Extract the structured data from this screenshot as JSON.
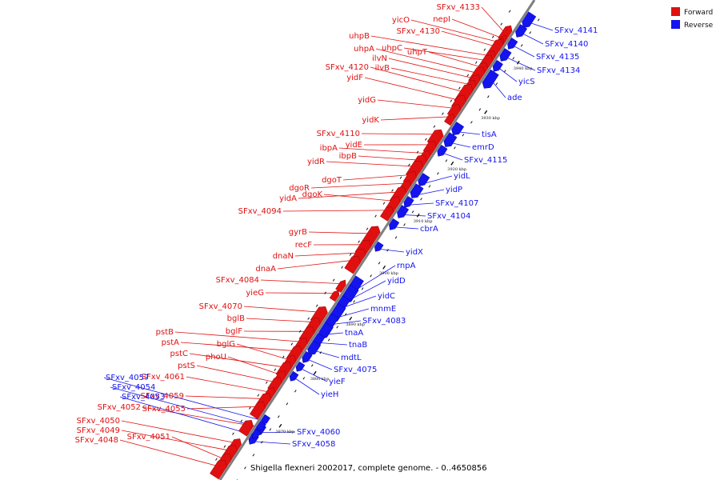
{
  "colors": {
    "forward": "#e01010",
    "reverse": "#1414ee",
    "backbone": "#808080",
    "tick_mark": "#111111",
    "background": "#ffffff"
  },
  "legend": {
    "forward_label": "Forward",
    "reverse_label": "Reverse"
  },
  "caption": "Shigella flexneri 2002017, complete genome. - 0..4650856",
  "scale": {
    "ticks": [
      "3870 kbp",
      "3880 kbp",
      "3890 kbp",
      "3900 kbp",
      "3910 kbp",
      "3920 kbp",
      "3930 kbp",
      "3940 kbp"
    ]
  },
  "forward_genes": [
    "SFxv_4133",
    "nepI",
    "yicO",
    "SFxv_4130",
    "uhpB",
    "uhpC",
    "uhpT",
    "uhpA",
    "ilvN",
    "ilvB",
    "SFxv_4120",
    "yidF",
    "yidG",
    "yidK",
    "SFxv_4110",
    "yidE",
    "ibpA",
    "ibpB",
    "yidR",
    "dgoT",
    "dgoR",
    "yidA",
    "dgoK",
    "SFxv_4094",
    "gyrB",
    "recF",
    "dnaN",
    "dnaA",
    "SFxv_4084",
    "yieG",
    "SFxv_4070",
    "bglB",
    "bglF",
    "pstB",
    "pstA",
    "bglG",
    "pstC",
    "phoU",
    "pstS",
    "SFxv_4061",
    "SFxv_4059",
    "SFxv_4055",
    "SFxv_4050",
    "SFxv_4049",
    "SFxv_4051",
    "SFxv_4048",
    "SFxv_4052"
  ],
  "reverse_genes": [
    "SFxv_4141",
    "SFxv_4140",
    "SFxv_4135",
    "SFxv_4134",
    "yicS",
    "ade",
    "tisA",
    "emrD",
    "SFxv_4115",
    "yidL",
    "yidP",
    "SFxv_4107",
    "SFxv_4104",
    "cbrA",
    "yidX",
    "rnpA",
    "yidD",
    "yidC",
    "mnmE",
    "SFxv_4083",
    "tnaA",
    "tnaB",
    "mdtL",
    "SFxv_4075",
    "yieF",
    "yieH",
    "SFxv_4060",
    "SFxv_4058",
    "SFxv_4057",
    "SFxv_4054",
    "SFxv_4053"
  ]
}
